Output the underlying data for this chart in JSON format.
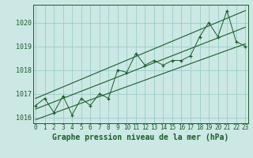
{
  "hours": [
    0,
    1,
    2,
    3,
    4,
    5,
    6,
    7,
    8,
    9,
    10,
    11,
    12,
    13,
    14,
    15,
    16,
    17,
    18,
    19,
    20,
    21,
    22,
    23
  ],
  "pressure": [
    1016.5,
    1016.8,
    1016.2,
    1016.9,
    1016.1,
    1016.8,
    1016.5,
    1017.0,
    1016.8,
    1018.0,
    1017.9,
    1018.7,
    1018.2,
    1018.4,
    1018.2,
    1018.4,
    1018.4,
    1018.6,
    1019.4,
    1020.0,
    1019.4,
    1020.5,
    1019.2,
    1019.0
  ],
  "upper_line_x": [
    0,
    23
  ],
  "upper_line_y": [
    1016.8,
    1020.5
  ],
  "lower_line_x": [
    0,
    23
  ],
  "lower_line_y": [
    1015.9,
    1019.1
  ],
  "mid_line_x": [
    0,
    23
  ],
  "mid_line_y": [
    1016.35,
    1019.8
  ],
  "ylim": [
    1015.75,
    1020.75
  ],
  "yticks": [
    1016,
    1017,
    1018,
    1019,
    1020
  ],
  "xlim": [
    -0.3,
    23.3
  ],
  "background_color": "#cce8e4",
  "grid_color": "#99cdc8",
  "line_color": "#1a5c2a",
  "title": "Graphe pression niveau de la mer (hPa)",
  "title_fontsize": 7.0,
  "tick_fontsize": 5.5,
  "ytick_fontsize": 6.0
}
